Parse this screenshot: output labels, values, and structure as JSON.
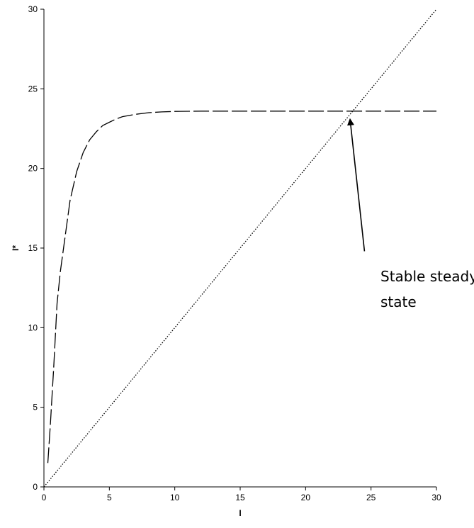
{
  "chart_data": {
    "type": "line",
    "xlabel": "I",
    "ylabel": "I*",
    "xlim": [
      0,
      30
    ],
    "ylim": [
      0,
      30
    ],
    "xticks": [
      0,
      5,
      10,
      15,
      20,
      25,
      30
    ],
    "yticks": [
      0,
      5,
      10,
      15,
      20,
      25,
      30
    ],
    "grid": false,
    "legend": "none",
    "series": [
      {
        "style": "dashed",
        "color": "#000000",
        "x": [
          0.3,
          0.5,
          0.75,
          1,
          1.25,
          1.5,
          1.75,
          2,
          2.5,
          3,
          3.5,
          4,
          4.5,
          5,
          5.5,
          6,
          7,
          8,
          9,
          10,
          12,
          15,
          20,
          25,
          30
        ],
        "y": [
          1.5,
          4.0,
          7.5,
          11.5,
          13.5,
          15.0,
          16.5,
          18.0,
          19.8,
          21.0,
          21.8,
          22.3,
          22.7,
          22.9,
          23.1,
          23.25,
          23.4,
          23.5,
          23.55,
          23.58,
          23.6,
          23.6,
          23.6,
          23.6,
          23.6
        ]
      },
      {
        "style": "dotted",
        "color": "#000000",
        "x": [
          0,
          30
        ],
        "y": [
          0,
          30
        ]
      }
    ],
    "annotations": [
      {
        "text_lines": [
          "Stable steady",
          "state"
        ],
        "arrow_from": [
          24.5,
          14.8
        ],
        "arrow_to": [
          23.4,
          23.6
        ]
      }
    ]
  }
}
